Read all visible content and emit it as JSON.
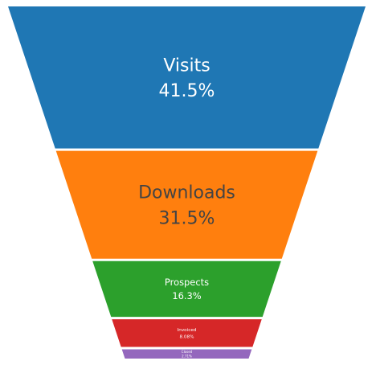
{
  "chart_data": {
    "type": "funnelarea",
    "title": "",
    "stages": [
      {
        "label": "Visits",
        "value": 41.5,
        "text": "41.5%",
        "color": "#1f77b4",
        "text_color": "#ffffff"
      },
      {
        "label": "Downloads",
        "value": 31.5,
        "text": "31.5%",
        "color": "#ff7f0e",
        "text_color": "#444444"
      },
      {
        "label": "Prospects",
        "value": 16.3,
        "text": "16.3%",
        "color": "#2ca02c",
        "text_color": "#ffffff"
      },
      {
        "label": "Invoiced",
        "value": 8.08,
        "text": "8.08%",
        "color": "#d62728",
        "text_color": "#ffffff"
      },
      {
        "label": "Closed",
        "value": 2.71,
        "text": "2.71%",
        "color": "#9467bd",
        "text_color": "#ffffff"
      }
    ]
  }
}
